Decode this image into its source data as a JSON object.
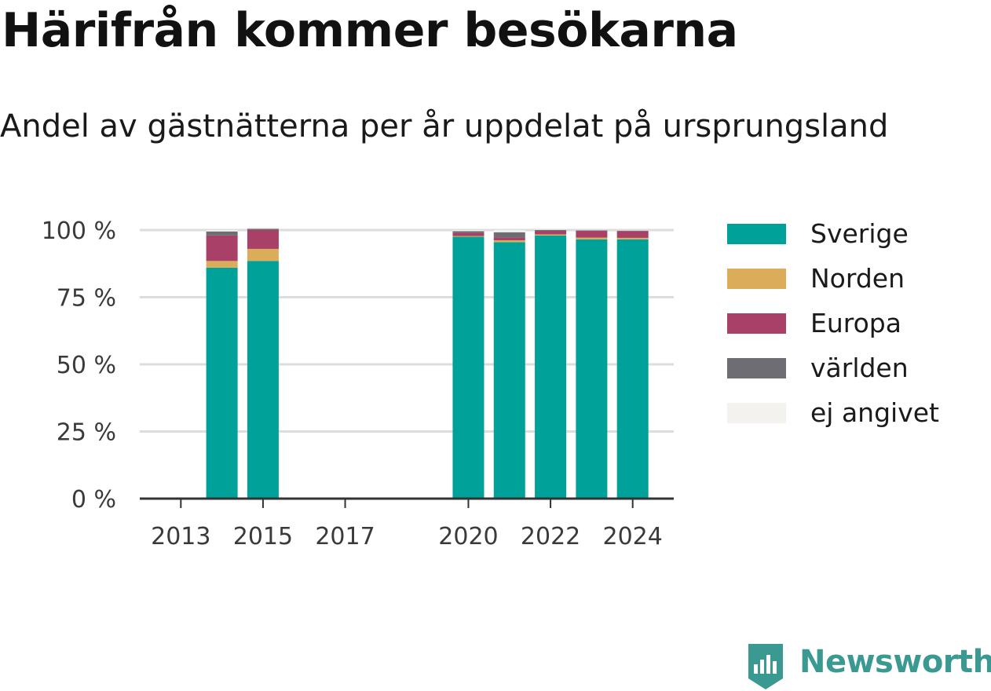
{
  "title": "Härifrån kommer besökarna",
  "subtitle": "Andel av gästnätterna per år uppdelat på ursprungsland",
  "brand": {
    "name": "Newsworthy",
    "icon": "newsworthy-logo-icon",
    "color": "#3a9990"
  },
  "chart_data": {
    "type": "bar",
    "stacked": true,
    "x": [
      2014,
      2015,
      2020,
      2021,
      2022,
      2023,
      2024
    ],
    "x_ticks": [
      "2013",
      "2015",
      "2017",
      "2020",
      "2022",
      "2024"
    ],
    "x_tick_values": [
      2013,
      2015,
      2017,
      2020,
      2022,
      2024
    ],
    "xlim": [
      2012,
      2025
    ],
    "y_ticks": [
      "0 %",
      "25 %",
      "50 %",
      "75 %",
      "100 %"
    ],
    "y_tick_values": [
      0,
      25,
      50,
      75,
      100
    ],
    "ylim": [
      0,
      100
    ],
    "grid": true,
    "legend_position": "right",
    "series": [
      {
        "name": "Sverige",
        "color": "#00a199",
        "values": [
          86,
          88.5,
          97.5,
          95.5,
          98,
          96.5,
          96.5
        ]
      },
      {
        "name": "Norden",
        "color": "#dbad5a",
        "values": [
          2.5,
          4.5,
          0.3,
          0.7,
          0.4,
          0.7,
          0.6
        ]
      },
      {
        "name": "Europa",
        "color": "#a94068",
        "values": [
          9.5,
          7,
          1.2,
          1,
          1.3,
          2.5,
          2.5
        ]
      },
      {
        "name": "världen",
        "color": "#6d6d73",
        "values": [
          1.5,
          0.5,
          0.6,
          2,
          0.3,
          0.2,
          0.2
        ]
      },
      {
        "name": "ej angivet",
        "color": "#f3f2ef",
        "values": [
          0.5,
          0.5,
          0.4,
          0.8,
          0,
          0.1,
          0.2
        ]
      }
    ]
  }
}
